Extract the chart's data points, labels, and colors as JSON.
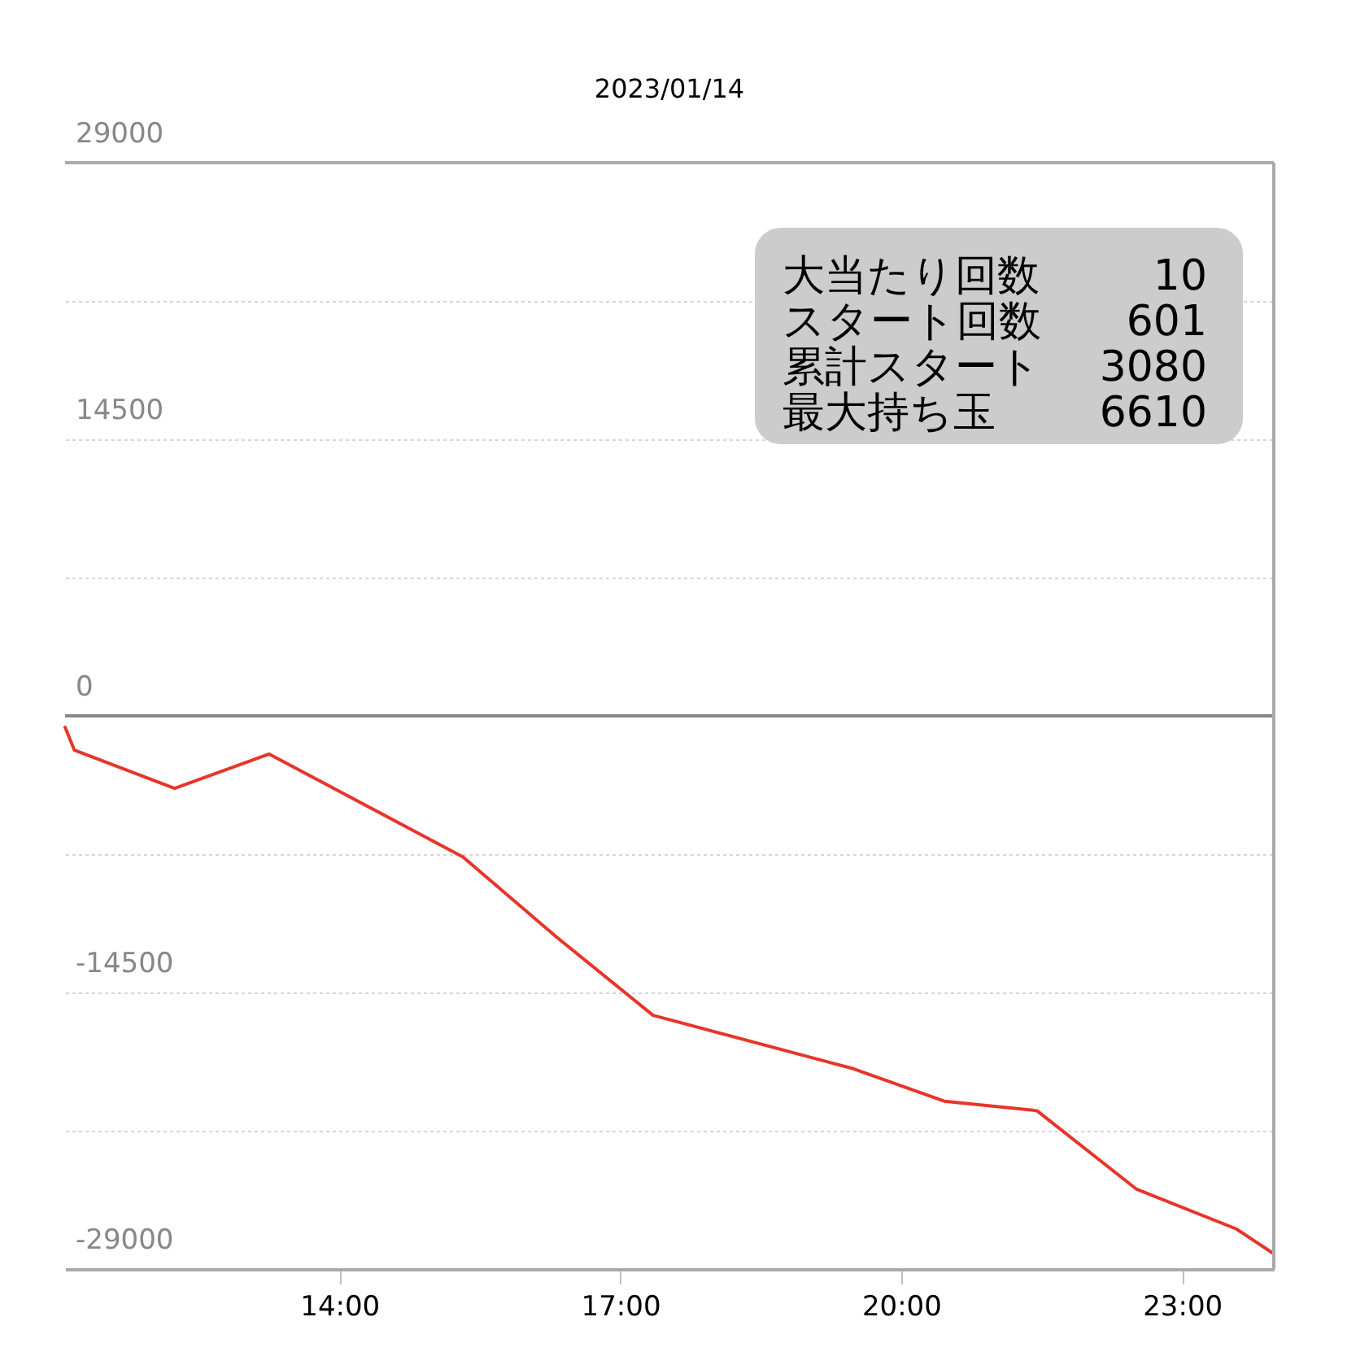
{
  "chart_data": {
    "type": "line",
    "title": "2023/01/14",
    "x": [
      11.07,
      11.17,
      12.24,
      13.25,
      15.32,
      16.32,
      17.35,
      19.49,
      20.46,
      21.45,
      22.51,
      23.58,
      23.98
    ],
    "series": [
      {
        "color": "#e8352a",
        "values": [
          -600,
          -1800,
          -3800,
          -2000,
          -7400,
          -11600,
          -15700,
          -18500,
          -20200,
          -20700,
          -24800,
          -26900,
          -28200
        ]
      }
    ],
    "xlim": [
      11.07,
      23.98
    ],
    "xticks": [
      {
        "value": 14,
        "label": "14:00"
      },
      {
        "value": 17,
        "label": "17:00"
      },
      {
        "value": 20,
        "label": "20:00"
      },
      {
        "value": 23,
        "label": "23:00"
      }
    ],
    "ylim": [
      -29000,
      29000
    ],
    "yticks": [
      29000,
      {
        "value": 21750,
        "label": null
      },
      14500,
      {
        "value": 7250,
        "label": null
      },
      0,
      {
        "value": -7250,
        "label": null
      },
      -14500,
      {
        "value": -21750,
        "label": null
      },
      -29000
    ],
    "grid": "y",
    "line_style": "solid",
    "ref_lines": [
      {
        "axis": "y",
        "value": 0,
        "color": "#888888"
      }
    ],
    "annotations": [
      "大当たり回数",
      "10",
      "スタート回数",
      "601",
      "累計スタート",
      "3080",
      "最大持ち玉",
      "6610"
    ]
  }
}
